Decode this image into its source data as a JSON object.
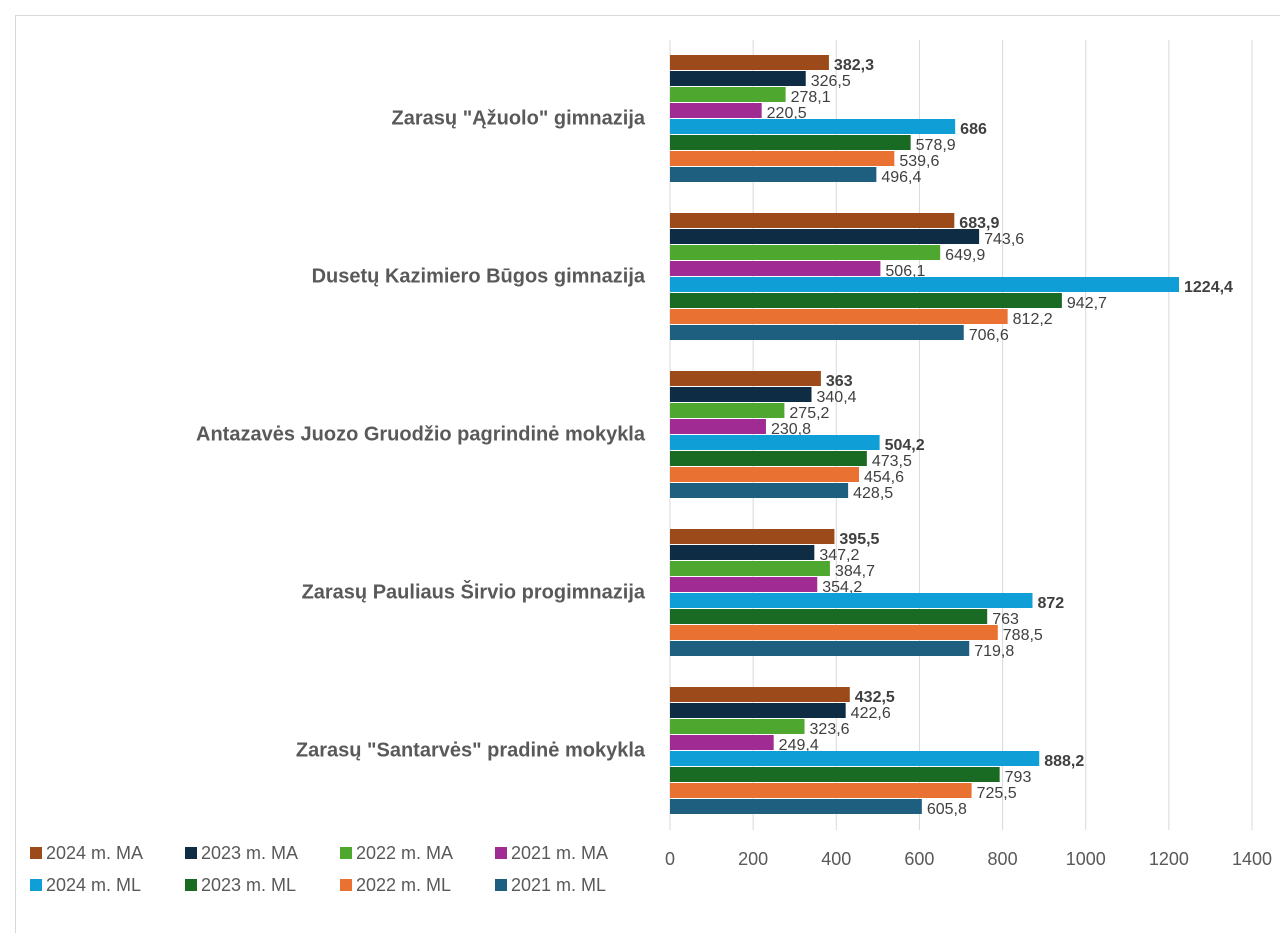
{
  "chart_data": {
    "type": "bar",
    "orientation": "horizontal",
    "categories": [
      "Zarasų \"Ąžuolo\" gimnazija",
      "Dusetų Kazimiero Būgos gimnazija",
      "Antazavės Juozo Gruodžio pagrindinė mokykla",
      "Zarasų Pauliaus Širvio progimnazija",
      "Zarasų \"Santarvės\" pradinė mokykla"
    ],
    "series": [
      {
        "name": "2024 m. MA",
        "color": "#9c4a1a",
        "bold": true,
        "values": [
          382.3,
          683.9,
          363,
          395.5,
          432.5
        ],
        "value_labels": [
          "382,3",
          "683,9",
          "363",
          "395,5",
          "432,5"
        ]
      },
      {
        "name": "2023 m. MA",
        "color": "#0e2d45",
        "values": [
          326.5,
          743.6,
          340.4,
          347.2,
          422.6
        ],
        "value_labels": [
          "326,5",
          "743,6",
          "340,4",
          "347,2",
          "422,6"
        ]
      },
      {
        "name": "2022 m. MA",
        "color": "#4ea72e",
        "values": [
          278.1,
          649.9,
          275.2,
          384.7,
          323.6
        ],
        "value_labels": [
          "278,1",
          "649,9",
          "275,2",
          "384,7",
          "323,6"
        ]
      },
      {
        "name": "2021 m. MA",
        "color": "#a02b93",
        "values": [
          220.5,
          506.1,
          230.8,
          354.2,
          249.4
        ],
        "value_labels": [
          "220,5",
          "506,1",
          "230,8",
          "354,2",
          "249,4"
        ]
      },
      {
        "name": "2024 m. ML",
        "color": "#0f9ed5",
        "bold": true,
        "values": [
          686,
          1224.4,
          504.2,
          872,
          888.2
        ],
        "value_labels": [
          "686",
          "1224,4",
          "504,2",
          "872",
          "888,2"
        ]
      },
      {
        "name": "2023 m. ML",
        "color": "#196b24",
        "values": [
          578.9,
          942.7,
          473.5,
          763,
          793
        ],
        "value_labels": [
          "578,9",
          "942,7",
          "473,5",
          "763",
          "793"
        ]
      },
      {
        "name": "2022 m. ML",
        "color": "#e97132",
        "values": [
          539.6,
          812.2,
          454.6,
          788.5,
          725.5
        ],
        "value_labels": [
          "539,6",
          "812,2",
          "454,6",
          "788,5",
          "725,5"
        ]
      },
      {
        "name": "2021 m. ML",
        "color": "#1e5f80",
        "values": [
          496.4,
          706.6,
          428.5,
          719.8,
          605.8
        ],
        "value_labels": [
          "496,4",
          "706,6",
          "428,5",
          "719,8",
          "605,8"
        ]
      }
    ],
    "xlim": [
      0,
      1400
    ],
    "xticks": [
      0,
      200,
      400,
      600,
      800,
      1000,
      1200,
      1400
    ],
    "grid": true,
    "legend": "bottom"
  }
}
